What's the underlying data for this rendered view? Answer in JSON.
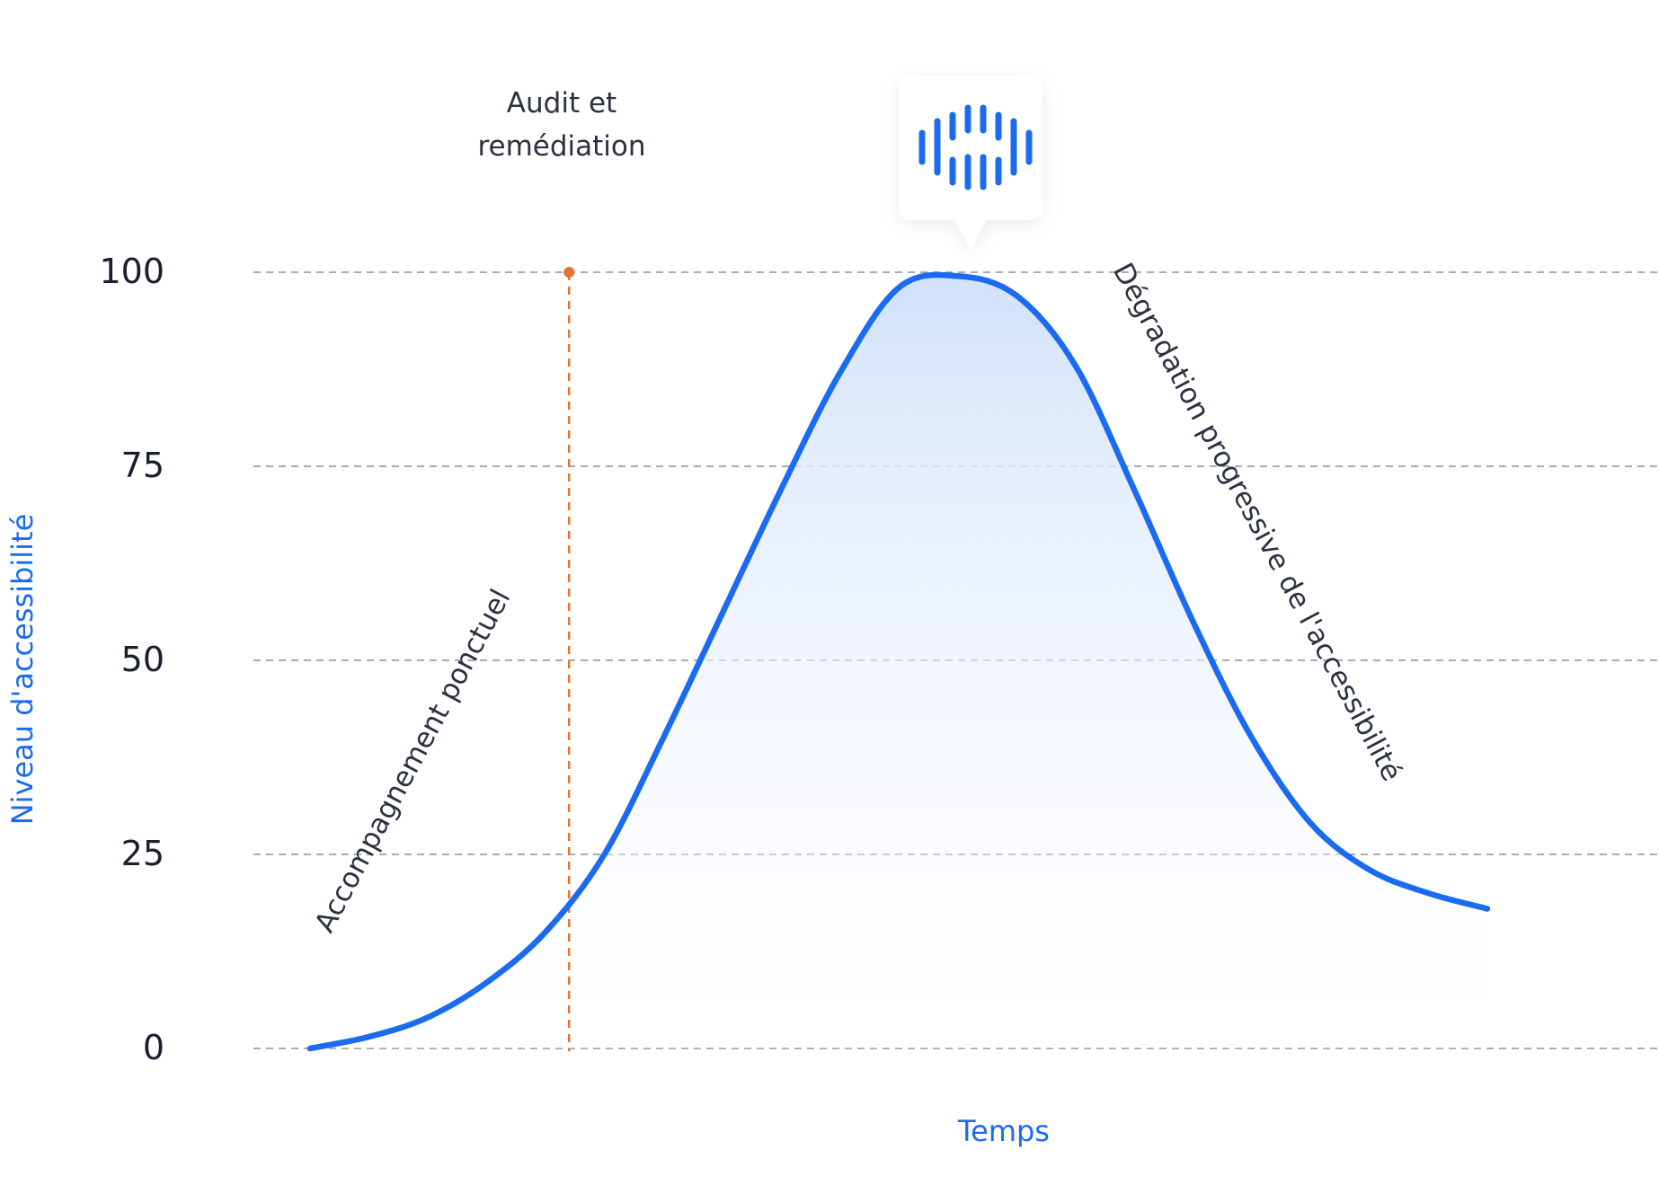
{
  "chart_data": {
    "type": "area",
    "xlabel": "Temps",
    "ylabel": "Niveau d'accessibilité",
    "yticks": [
      0,
      25,
      50,
      75,
      100
    ],
    "ylim": [
      0,
      100
    ],
    "grid": true,
    "series": [
      {
        "x": [
          0,
          5,
          10,
          15,
          20,
          25,
          30,
          35,
          40,
          45,
          50,
          55,
          60,
          65,
          70,
          75,
          80,
          85,
          90,
          95,
          100
        ],
        "values": [
          0,
          1.5,
          4,
          8.5,
          15,
          25,
          40,
          56,
          72,
          87,
          98,
          99.5,
          97,
          88,
          72,
          55,
          40,
          29,
          23,
          20,
          18
        ]
      }
    ],
    "annotations": [
      {
        "text": "Accompagnement ponctuel"
      },
      {
        "text": "Dégradation progressive de l'accessibilité"
      },
      {
        "text_lines": [
          "Audit et",
          "remédiation"
        ],
        "x": 22
      }
    ],
    "colors": {
      "line": "#1a6bef",
      "fill": "#d6e4fb",
      "marker": "#e6732e",
      "grid": "#8a8fa3",
      "axis_title": "#1a6bef",
      "icon": "#1a6bef"
    },
    "logo_icon": "waveform-logo-icon"
  }
}
